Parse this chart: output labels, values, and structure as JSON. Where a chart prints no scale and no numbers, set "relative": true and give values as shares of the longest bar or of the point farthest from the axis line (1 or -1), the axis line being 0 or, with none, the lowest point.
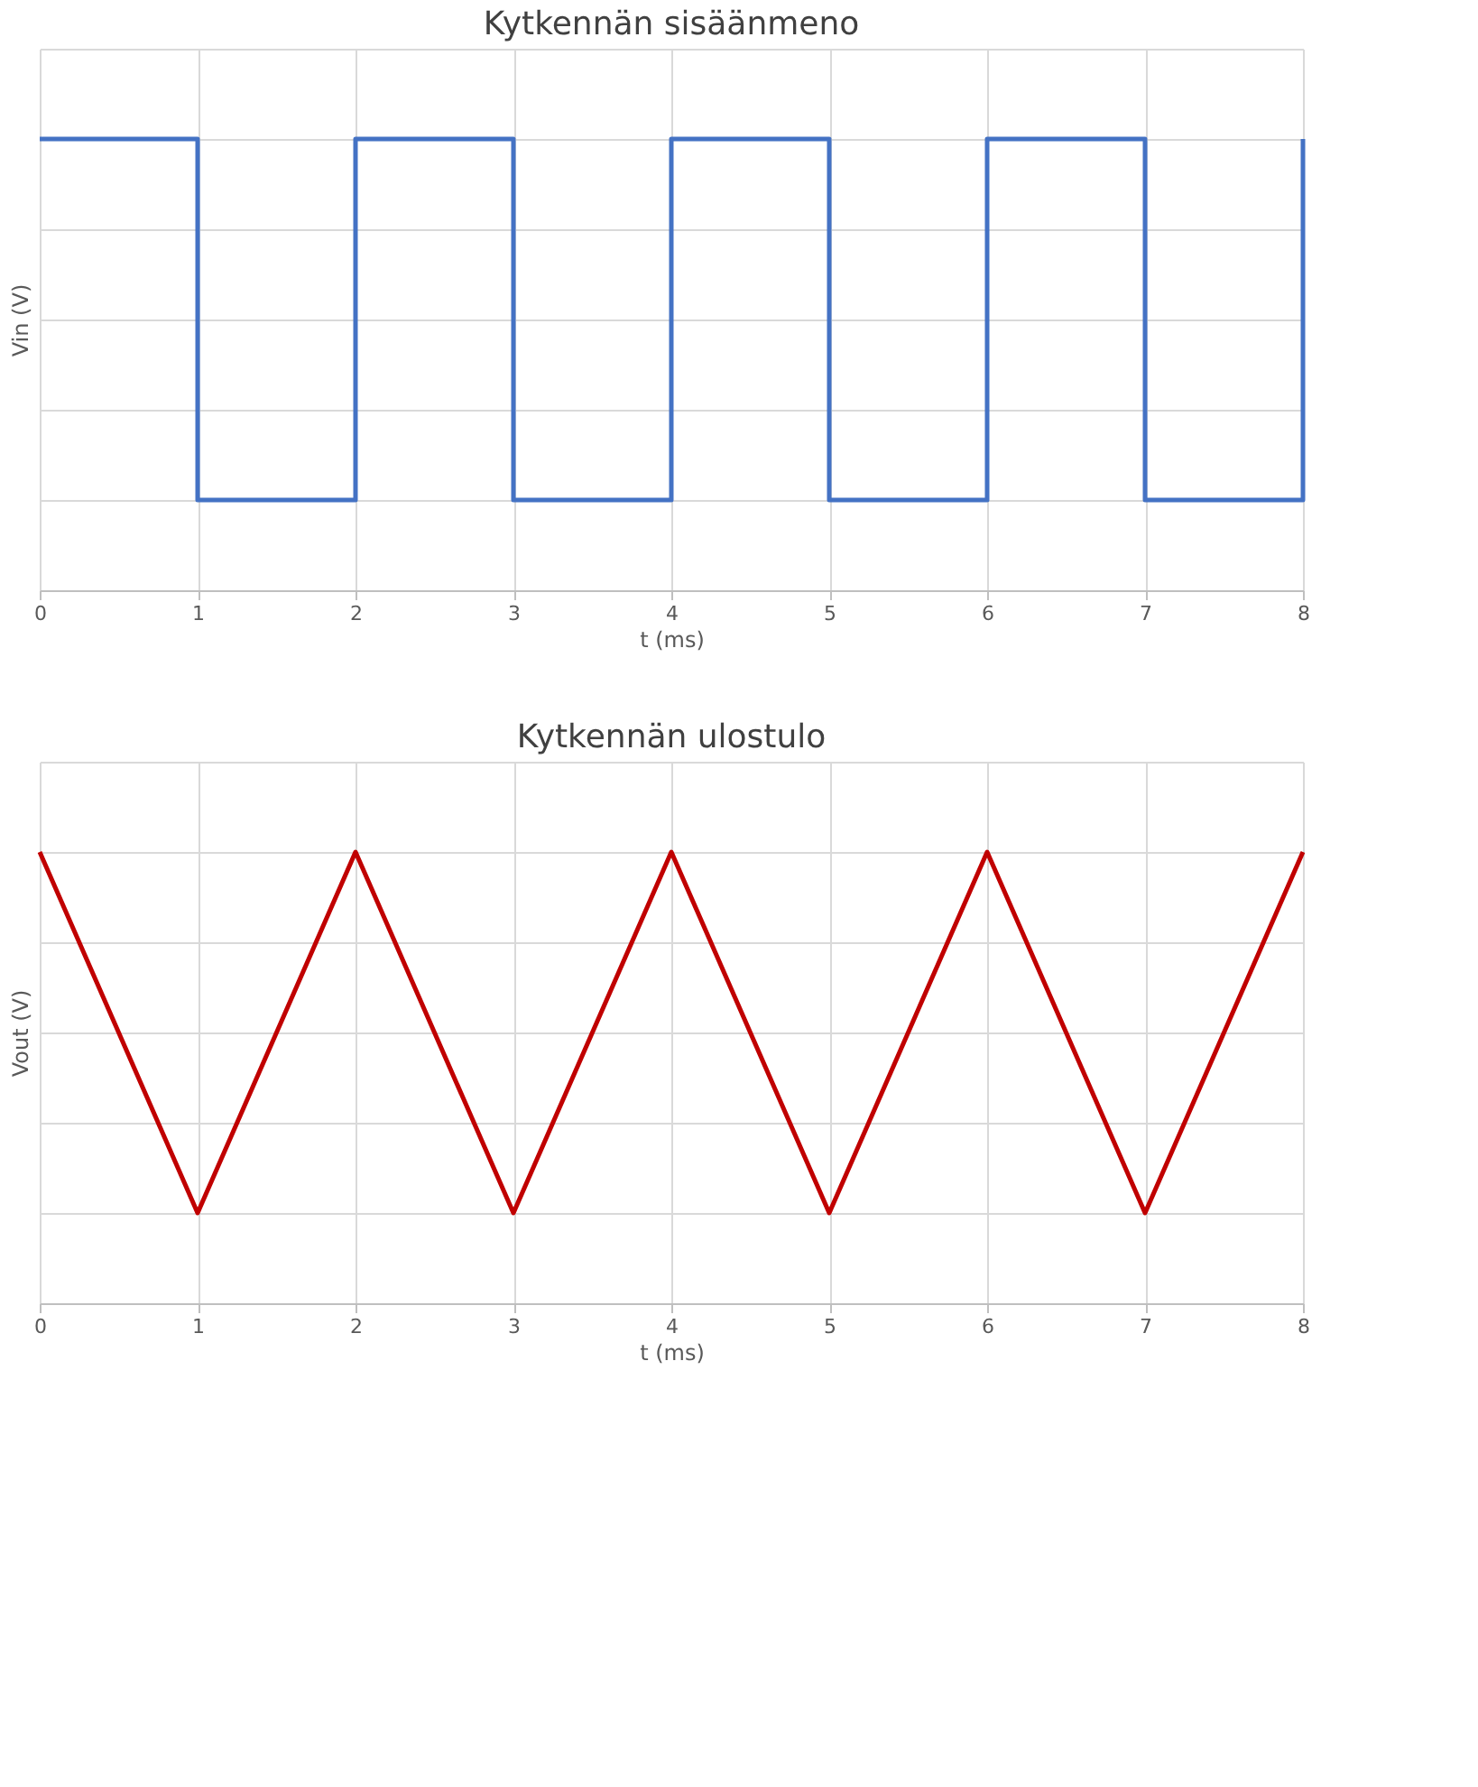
{
  "chart_data": [
    {
      "type": "step",
      "title": "Kytkennän sisäänmeno",
      "xlabel": "t (ms)",
      "ylabel": "Vin (V)",
      "relative": true,
      "x": [
        0,
        1,
        2,
        3,
        4,
        5,
        6,
        7,
        8
      ],
      "xlim": [
        0,
        8
      ],
      "xticks": [
        0,
        1,
        2,
        3,
        4,
        5,
        6,
        7,
        8
      ],
      "grid": true,
      "tick_labels": "x",
      "series": [
        {
          "color": "#4472c4",
          "values": [
            1,
            0.2,
            1,
            0.2,
            1,
            0.2,
            1,
            0.2,
            1
          ]
        }
      ]
    },
    {
      "type": "line",
      "title": "Kytkennän ulostulo",
      "xlabel": "t (ms)",
      "ylabel": "Vout (V)",
      "relative": true,
      "x": [
        0,
        1,
        2,
        3,
        4,
        5,
        6,
        7,
        8
      ],
      "xlim": [
        0,
        8
      ],
      "xticks": [
        0,
        1,
        2,
        3,
        4,
        5,
        6,
        7,
        8
      ],
      "grid": true,
      "tick_labels": "x",
      "series": [
        {
          "color": "#c00000",
          "values": [
            1,
            0.2,
            1,
            0.2,
            1,
            0.2,
            1,
            0.2,
            1
          ]
        }
      ]
    }
  ]
}
